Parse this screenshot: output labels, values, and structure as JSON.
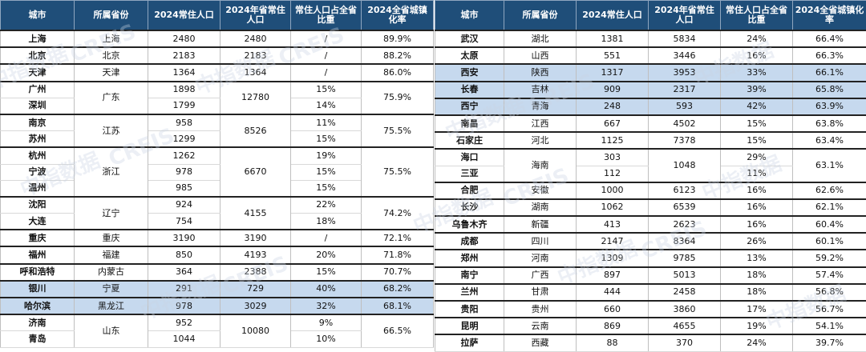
{
  "headers": [
    "城市",
    "所属省份",
    "2024常住人口",
    "2024年省常住人口",
    "常住人口占全省比重",
    "2024全省城镇化率"
  ],
  "left": [
    {
      "city": "上海",
      "prov": "上海",
      "pop": "2480",
      "ppop": "2480",
      "ratio": "/",
      "urban": "89.9%",
      "pspan": 1,
      "gspan": 1,
      "gs": true,
      "hl": false,
      "red": false
    },
    {
      "city": "北京",
      "prov": "北京",
      "pop": "2183",
      "ppop": "2183",
      "ratio": "/",
      "urban": "88.2%",
      "pspan": 1,
      "gspan": 1,
      "gs": true,
      "hl": false,
      "red": false
    },
    {
      "city": "天津",
      "prov": "天津",
      "pop": "1364",
      "ppop": "1364",
      "ratio": "/",
      "urban": "86.0%",
      "pspan": 1,
      "gspan": 1,
      "gs": true,
      "hl": false,
      "red": false
    },
    {
      "city": "广州",
      "prov": "广东",
      "pop": "1898",
      "ppop": "12780",
      "ratio": "15%",
      "urban": "75.9%",
      "pspan": 2,
      "gspan": 2,
      "gs": true,
      "hl": false,
      "red": false
    },
    {
      "city": "深圳",
      "pop": "1799",
      "ratio": "14%",
      "hl": false,
      "red": false
    },
    {
      "city": "南京",
      "prov": "江苏",
      "pop": "958",
      "ppop": "8526",
      "ratio": "11%",
      "urban": "75.5%",
      "pspan": 2,
      "gspan": 2,
      "gs": true,
      "hl": false,
      "red": false
    },
    {
      "city": "苏州",
      "pop": "1299",
      "ratio": "15%",
      "hl": false,
      "red": false
    },
    {
      "city": "杭州",
      "prov": "浙江",
      "pop": "1262",
      "ppop": "6670",
      "ratio": "19%",
      "urban": "75.5%",
      "pspan": 3,
      "gspan": 3,
      "gs": true,
      "hl": false,
      "red": false
    },
    {
      "city": "宁波",
      "pop": "978",
      "ratio": "15%",
      "hl": false,
      "red": false
    },
    {
      "city": "温州",
      "pop": "985",
      "ratio": "15%",
      "hl": false,
      "red": false
    },
    {
      "city": "沈阳",
      "prov": "辽宁",
      "pop": "924",
      "ppop": "4155",
      "ratio": "22%",
      "urban": "74.2%",
      "pspan": 2,
      "gspan": 2,
      "gs": true,
      "hl": false,
      "red": false
    },
    {
      "city": "大连",
      "pop": "754",
      "ratio": "18%",
      "hl": false,
      "red": false
    },
    {
      "city": "重庆",
      "prov": "重庆",
      "pop": "3190",
      "ppop": "3190",
      "ratio": "/",
      "urban": "72.1%",
      "pspan": 1,
      "gspan": 1,
      "gs": true,
      "hl": false,
      "red": false
    },
    {
      "city": "福州",
      "prov": "福建",
      "pop": "850",
      "ppop": "4193",
      "ratio": "20%",
      "urban": "71.8%",
      "pspan": 1,
      "gspan": 1,
      "gs": true,
      "hl": false,
      "red": false
    },
    {
      "city": "呼和浩特",
      "prov": "内蒙古",
      "pop": "364",
      "ppop": "2388",
      "ratio": "15%",
      "urban": "70.7%",
      "pspan": 1,
      "gspan": 1,
      "gs": true,
      "hl": false,
      "red": false
    },
    {
      "city": "银川",
      "prov": "宁夏",
      "pop": "291",
      "ppop": "729",
      "ratio": "40%",
      "urban": "68.2%",
      "pspan": 1,
      "gspan": 1,
      "gs": true,
      "hl": true,
      "red": true
    },
    {
      "city": "哈尔滨",
      "prov": "黑龙江",
      "pop": "978",
      "ppop": "3029",
      "ratio": "32%",
      "urban": "68.1%",
      "pspan": 1,
      "gspan": 1,
      "gs": true,
      "hl": true,
      "red": true
    },
    {
      "city": "济南",
      "prov": "山东",
      "pop": "952",
      "ppop": "10080",
      "ratio": "9%",
      "urban": "66.5%",
      "pspan": 2,
      "gspan": 2,
      "gs": true,
      "hl": false,
      "red": false
    },
    {
      "city": "青岛",
      "pop": "1044",
      "ratio": "10%",
      "hl": false,
      "red": false
    }
  ],
  "right": [
    {
      "city": "武汉",
      "prov": "湖北",
      "pop": "1381",
      "ppop": "5834",
      "ratio": "24%",
      "urban": "66.4%",
      "pspan": 1,
      "gspan": 1,
      "gs": true,
      "hl": false,
      "red": false
    },
    {
      "city": "太原",
      "prov": "山西",
      "pop": "551",
      "ppop": "3446",
      "ratio": "16%",
      "urban": "66.3%",
      "pspan": 1,
      "gspan": 1,
      "gs": true,
      "hl": false,
      "red": false
    },
    {
      "city": "西安",
      "prov": "陕西",
      "pop": "1317",
      "ppop": "3953",
      "ratio": "33%",
      "urban": "66.1%",
      "pspan": 1,
      "gspan": 1,
      "gs": true,
      "hl": true,
      "red": true
    },
    {
      "city": "长春",
      "prov": "吉林",
      "pop": "909",
      "ppop": "2317",
      "ratio": "39%",
      "urban": "65.8%",
      "pspan": 1,
      "gspan": 1,
      "gs": true,
      "hl": true,
      "red": true
    },
    {
      "city": "西宁",
      "prov": "青海",
      "pop": "248",
      "ppop": "593",
      "ratio": "42%",
      "urban": "63.9%",
      "pspan": 1,
      "gspan": 1,
      "gs": true,
      "hl": true,
      "red": true
    },
    {
      "city": "南昌",
      "prov": "江西",
      "pop": "667",
      "ppop": "4502",
      "ratio": "15%",
      "urban": "63.8%",
      "pspan": 1,
      "gspan": 1,
      "gs": true,
      "hl": false,
      "red": false
    },
    {
      "city": "石家庄",
      "prov": "河北",
      "pop": "1125",
      "ppop": "7378",
      "ratio": "15%",
      "urban": "63.4%",
      "pspan": 1,
      "gspan": 1,
      "gs": true,
      "hl": false,
      "red": false
    },
    {
      "city": "海口",
      "prov": "海南",
      "pop": "303",
      "ppop": "1048",
      "ratio": "29%",
      "urban": "63.1%",
      "pspan": 2,
      "gspan": 2,
      "gs": true,
      "hl": false,
      "red": false
    },
    {
      "city": "三亚",
      "pop": "112",
      "ratio": "11%",
      "hl": false,
      "red": false
    },
    {
      "city": "合肥",
      "prov": "安徽",
      "pop": "1000",
      "ppop": "6123",
      "ratio": "16%",
      "urban": "62.6%",
      "pspan": 1,
      "gspan": 1,
      "gs": true,
      "hl": false,
      "red": false
    },
    {
      "city": "长沙",
      "prov": "湖南",
      "pop": "1062",
      "ppop": "6539",
      "ratio": "16%",
      "urban": "62.1%",
      "pspan": 1,
      "gspan": 1,
      "gs": true,
      "hl": false,
      "red": false
    },
    {
      "city": "乌鲁木齐",
      "prov": "新疆",
      "pop": "413",
      "ppop": "2623",
      "ratio": "16%",
      "urban": "60.4%",
      "pspan": 1,
      "gspan": 1,
      "gs": true,
      "hl": false,
      "red": false
    },
    {
      "city": "成都",
      "prov": "四川",
      "pop": "2147",
      "ppop": "8364",
      "ratio": "26%",
      "urban": "60.1%",
      "pspan": 1,
      "gspan": 1,
      "gs": true,
      "hl": false,
      "red": false
    },
    {
      "city": "郑州",
      "prov": "河南",
      "pop": "1309",
      "ppop": "9785",
      "ratio": "13%",
      "urban": "59.2%",
      "pspan": 1,
      "gspan": 1,
      "gs": true,
      "hl": false,
      "red": false
    },
    {
      "city": "南宁",
      "prov": "广西",
      "pop": "897",
      "ppop": "5013",
      "ratio": "18%",
      "urban": "57.4%",
      "pspan": 1,
      "gspan": 1,
      "gs": true,
      "hl": false,
      "red": false
    },
    {
      "city": "兰州",
      "prov": "甘肃",
      "pop": "444",
      "ppop": "2458",
      "ratio": "18%",
      "urban": "56.8%",
      "pspan": 1,
      "gspan": 1,
      "gs": true,
      "hl": false,
      "red": false
    },
    {
      "city": "贵阳",
      "prov": "贵州",
      "pop": "660",
      "ppop": "3860",
      "ratio": "17%",
      "urban": "56.7%",
      "pspan": 1,
      "gspan": 1,
      "gs": true,
      "hl": false,
      "red": false
    },
    {
      "city": "昆明",
      "prov": "云南",
      "pop": "869",
      "ppop": "4655",
      "ratio": "19%",
      "urban": "54.1%",
      "pspan": 1,
      "gspan": 1,
      "gs": true,
      "hl": false,
      "red": false
    },
    {
      "city": "拉萨",
      "prov": "西藏",
      "pop": "88",
      "ppop": "370",
      "ratio": "24%",
      "urban": "39.7%",
      "pspan": 1,
      "gspan": 1,
      "gs": true,
      "hl": false,
      "red": false
    }
  ],
  "watermark": {
    "cn": "中指数据",
    "en": "CREIS"
  }
}
